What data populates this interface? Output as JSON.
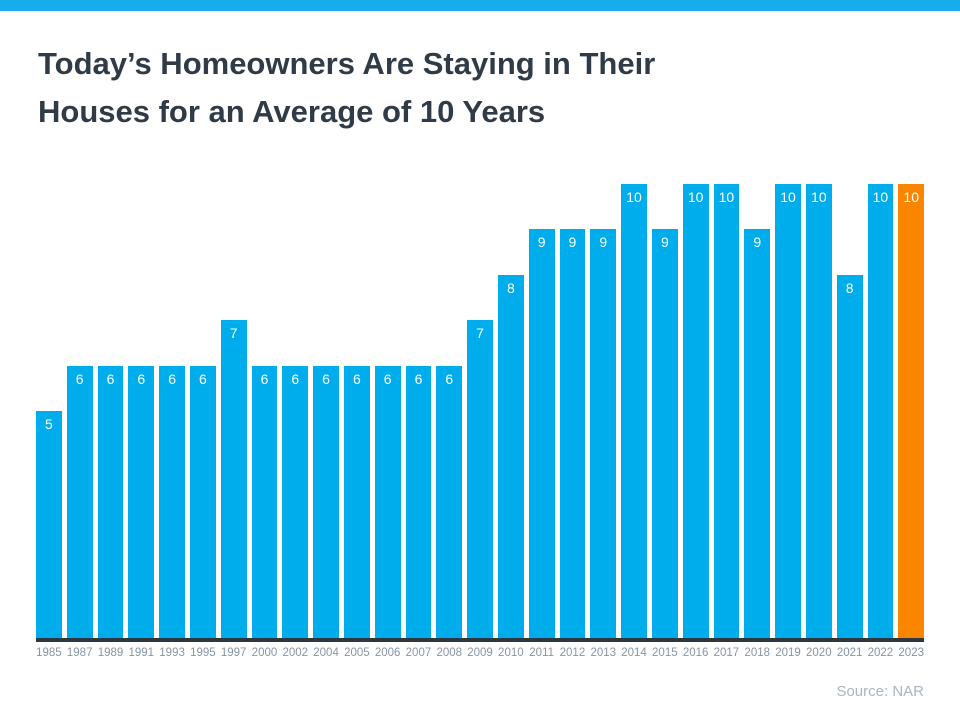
{
  "header": {
    "title_line1": "Today’s Homeowners Are Staying in Their",
    "title_line2": "Houses for an Average of 10 Years"
  },
  "footer": {
    "source": "Source: NAR"
  },
  "colors": {
    "bar": "#00ADEC",
    "highlight": "#FC8500",
    "top_stripe": "#18ACEC",
    "axis": "#2E3840",
    "title_text": "#2F3B47",
    "tick_text": "#8695A5",
    "value_text": "#FFFFFF",
    "source_text": "#A9B5C0"
  },
  "chart_data": {
    "type": "bar",
    "title": "Today’s Homeowners Are Staying in Their Houses for an Average of 10 Years",
    "categories": [
      "1985",
      "1987",
      "1989",
      "1991",
      "1993",
      "1995",
      "1997",
      "2000",
      "2002",
      "2004",
      "2005",
      "2006",
      "2007",
      "2008",
      "2009",
      "2010",
      "2011",
      "2012",
      "2013",
      "2014",
      "2015",
      "2016",
      "2017",
      "2018",
      "2019",
      "2020",
      "2021",
      "2022",
      "2023"
    ],
    "values": [
      5,
      6,
      6,
      6,
      6,
      6,
      7,
      6,
      6,
      6,
      6,
      6,
      6,
      6,
      7,
      8,
      9,
      9,
      9,
      10,
      9,
      10,
      10,
      9,
      10,
      10,
      8,
      10,
      10
    ],
    "xlabel": "",
    "ylabel": "",
    "ylim": [
      0,
      10
    ],
    "grid": false,
    "legend": false,
    "bar_value_labels_shown": true,
    "highlight_index": 28,
    "highlight_category": "2023",
    "source": "Source: NAR"
  }
}
